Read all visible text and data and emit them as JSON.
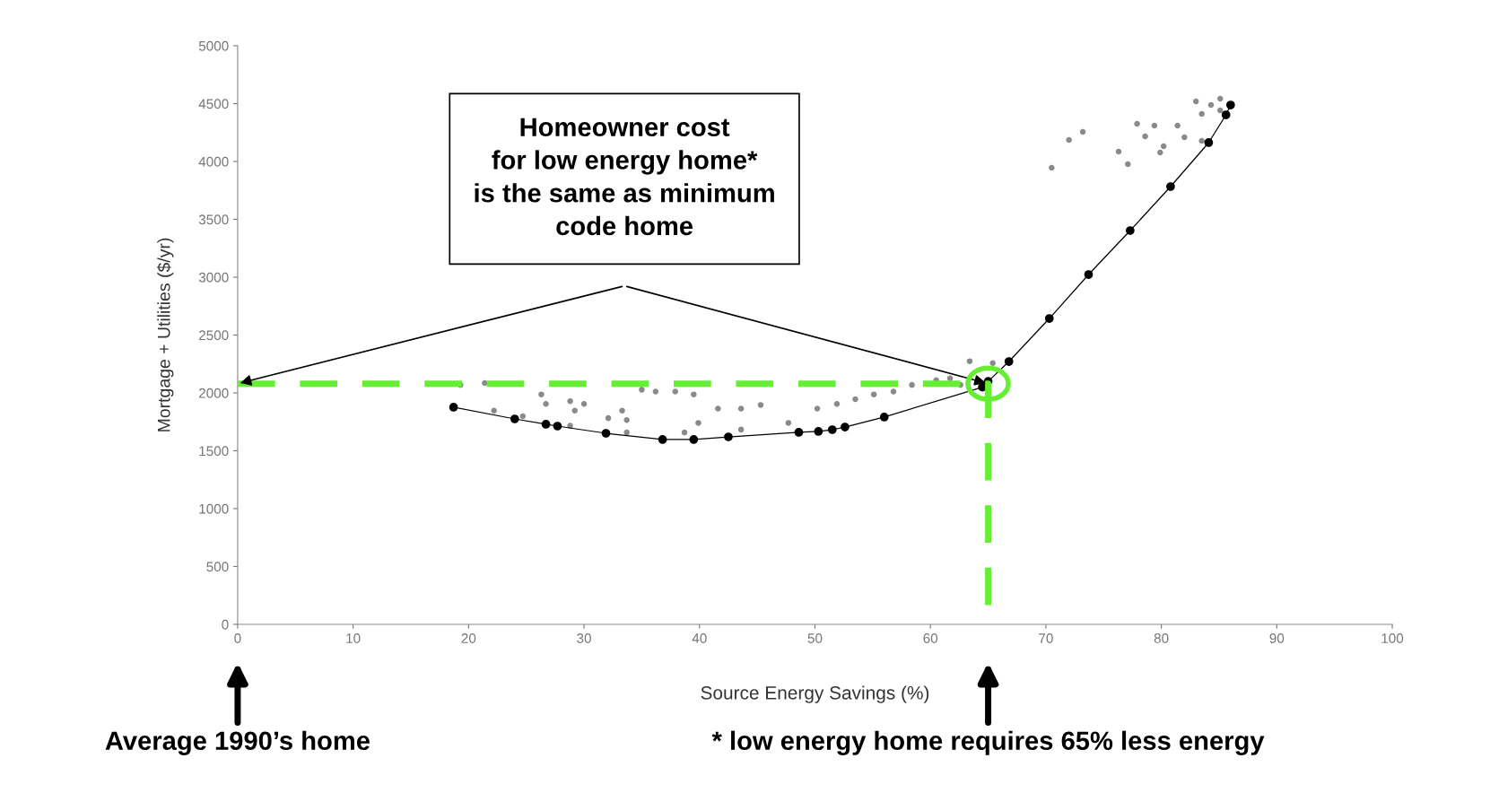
{
  "chart_data": {
    "type": "scatter",
    "xlabel": "Source Energy Savings (%)",
    "ylabel": "Mortgage + Utilities ($/yr)",
    "xlim": [
      0,
      100
    ],
    "xticks": [
      0,
      10,
      20,
      30,
      40,
      50,
      60,
      70,
      80,
      90,
      100
    ],
    "ylim": [
      0,
      5000
    ],
    "yticks": [
      0,
      500,
      1000,
      1500,
      2000,
      2500,
      3000,
      3500,
      4000,
      4500,
      5000
    ],
    "grid": false,
    "series": [
      {
        "color": "#8a8a8a",
        "marker": "circle",
        "x": [
          19.3,
          21.4,
          26.3,
          26.7,
          28.8,
          29.2,
          30.0,
          32.1,
          33.3,
          33.7,
          35.0,
          36.2,
          37.9,
          39.5,
          39.9,
          41.6,
          43.6,
          45.3,
          22.2,
          24.7,
          28.8,
          33.7,
          38.7,
          43.6,
          47.7,
          50.2,
          51.9,
          53.5,
          55.1,
          56.8,
          58.4,
          60.5,
          61.7,
          62.6,
          63.4,
          65.4,
          70.5,
          72.0,
          73.2,
          76.3,
          77.1,
          77.9,
          78.6,
          79.4,
          79.9,
          80.2,
          81.4,
          82.0,
          83.0,
          83.5,
          84.3,
          85.1,
          83.5,
          85.1
        ],
        "values": [
          2069,
          2085,
          1987,
          1905,
          1929,
          1847,
          1905,
          1782,
          1847,
          1765,
          2028,
          2011,
          2011,
          1987,
          1741,
          1864,
          1864,
          1896,
          1847,
          1798,
          1716,
          1658,
          1658,
          1683,
          1741,
          1864,
          1905,
          1946,
          1987,
          2011,
          2069,
          2110,
          2126,
          2069,
          2274,
          2258,
          3946,
          4186,
          4256,
          4085,
          3977,
          4326,
          4217,
          4310,
          4078,
          4132,
          4310,
          4209,
          4519,
          4411,
          4488,
          4442,
          4178,
          4543
        ]
      },
      {
        "type": "line",
        "color": "#000000",
        "marker": "circle",
        "line_style": "solid",
        "x": [
          18.7,
          24.0,
          26.7,
          27.7,
          31.9,
          36.8,
          39.5,
          42.5,
          48.6,
          50.3,
          51.5,
          52.6,
          56.0,
          64.5,
          65.0,
          66.8,
          70.3,
          73.7,
          77.3,
          80.8,
          84.1,
          85.6,
          86.0
        ],
        "values": [
          1876,
          1775,
          1729,
          1713,
          1651,
          1597,
          1597,
          1620,
          1659,
          1667,
          1682,
          1705,
          1791,
          2050,
          2100,
          2271,
          2643,
          3023,
          3403,
          3783,
          4163,
          4403,
          4488
        ]
      },
      {
        "type": "line",
        "color": "#66ee33",
        "marker": "none",
        "line_style": "dashed",
        "x": [
          0,
          65,
          65
        ],
        "values": [
          2080,
          2080,
          0
        ]
      }
    ],
    "annotations": [
      "Homeowner cost\nfor low energy home*\nis the same as minimum\ncode home",
      "Average 1990’s home",
      "* low energy home requires 65% less energy"
    ]
  }
}
